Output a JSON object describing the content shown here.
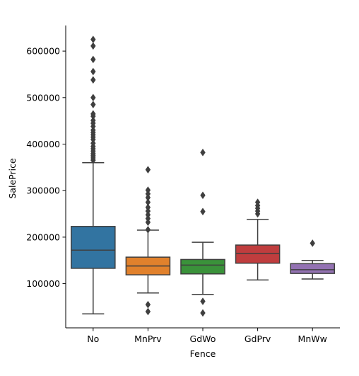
{
  "chart_data": {
    "type": "boxplot",
    "xlabel": "Fence",
    "ylabel": "SalePrice",
    "ylim": [
      5000,
      655000
    ],
    "yticks": [
      100000,
      200000,
      300000,
      400000,
      500000,
      600000
    ],
    "ytick_labels": [
      "100000",
      "200000",
      "300000",
      "400000",
      "500000",
      "600000"
    ],
    "grid": false,
    "categories": [
      "No",
      "MnPrv",
      "GdWo",
      "GdPrv",
      "MnWw"
    ],
    "boxes": [
      {
        "category": "No",
        "color": "#3274a1",
        "whislo": 35000,
        "q1": 133000,
        "med": 172000,
        "q3": 223000,
        "whishi": 360000,
        "fliers": [
          365000,
          368000,
          372000,
          376000,
          380000,
          385000,
          390000,
          395000,
          402000,
          410000,
          415000,
          420000,
          425000,
          430000,
          438000,
          445000,
          451000,
          460000,
          465000,
          485000,
          500000,
          538000,
          556000,
          582000,
          611000,
          625000
        ]
      },
      {
        "category": "MnPrv",
        "color": "#e1812c",
        "whislo": 80000,
        "q1": 119000,
        "med": 138000,
        "q3": 157000,
        "whishi": 215000,
        "fliers": [
          40000,
          55000,
          216000,
          232000,
          240000,
          248000,
          256000,
          264000,
          275000,
          285000,
          293000,
          301000,
          345000
        ]
      },
      {
        "category": "GdWo",
        "color": "#3a923a",
        "whislo": 77000,
        "q1": 121000,
        "med": 140000,
        "q3": 152000,
        "whishi": 189000,
        "fliers": [
          37000,
          62000,
          255000,
          290000,
          382000
        ]
      },
      {
        "category": "GdPrv",
        "color": "#c03d3e",
        "whislo": 108000,
        "q1": 144000,
        "med": 165000,
        "q3": 183000,
        "whishi": 238000,
        "fliers": [
          250000,
          256000,
          262000,
          268000,
          275000
        ]
      },
      {
        "category": "MnWw",
        "color": "#9372b2",
        "whislo": 110000,
        "q1": 122000,
        "med": 130000,
        "q3": 143000,
        "whishi": 150000,
        "fliers": [
          187000
        ]
      }
    ]
  }
}
